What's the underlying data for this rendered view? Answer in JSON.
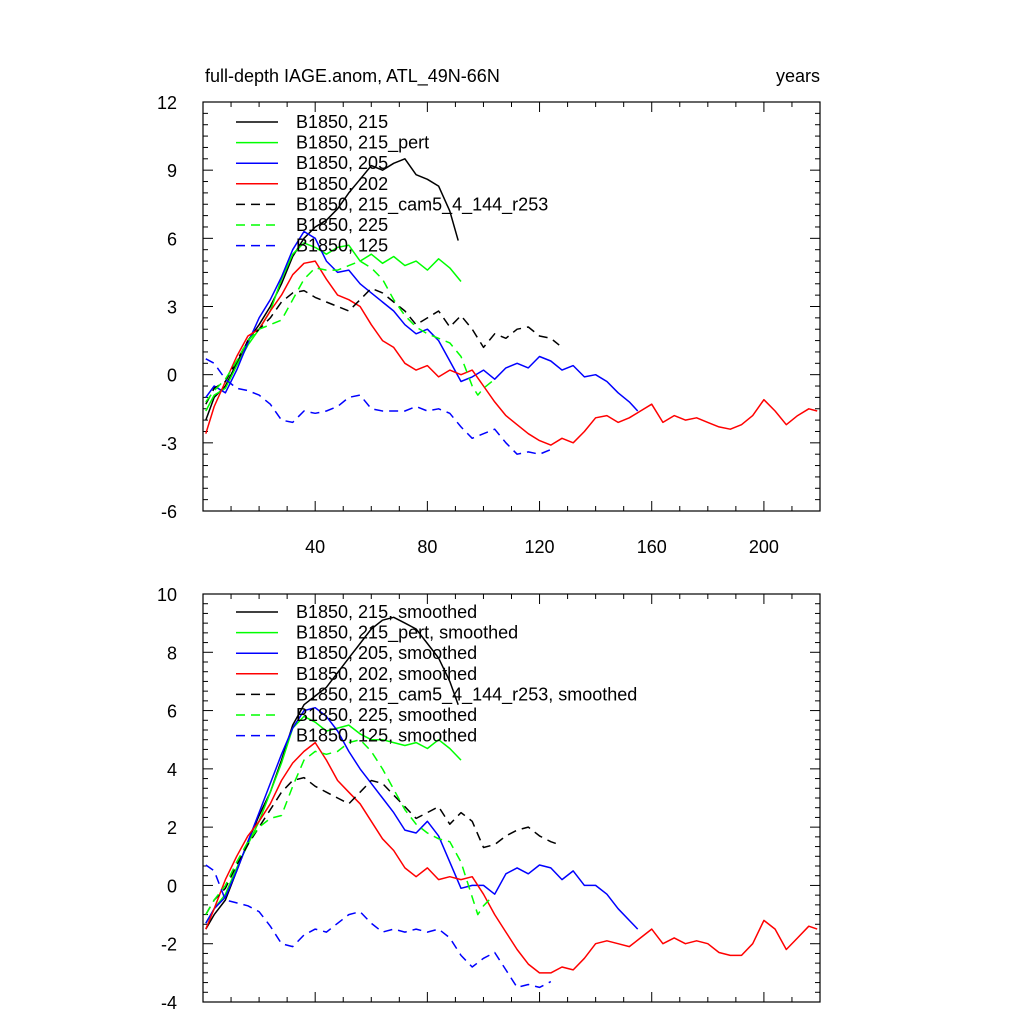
{
  "colors": {
    "black": "#000000",
    "green": "#00ff00",
    "blue": "#0000ff",
    "red": "#ff0000"
  },
  "chart_data": [
    {
      "type": "line",
      "title": "full-depth IAGE.anom, ATL_49N-66N",
      "units": "years",
      "xlim": [
        0,
        220
      ],
      "ylim": [
        -6,
        12
      ],
      "x_ticks": [
        "40",
        "80",
        "120",
        "160",
        "200"
      ],
      "y_ticks": [
        "-6",
        "-3",
        "0",
        "3",
        "6",
        "9",
        "12"
      ],
      "series": [
        {
          "name": "B1850, 215",
          "color": "#000000",
          "dash": false,
          "x": [
            1,
            4,
            8,
            12,
            16,
            20,
            24,
            28,
            32,
            36,
            40,
            44,
            48,
            52,
            56,
            60,
            64,
            68,
            72,
            76,
            80,
            84,
            88,
            91
          ],
          "y": [
            -2.0,
            -1.0,
            -0.5,
            0.5,
            1.5,
            2.2,
            3.0,
            4.0,
            5.2,
            6.0,
            6.5,
            6.8,
            7.3,
            8.0,
            8.6,
            9.2,
            9.0,
            9.3,
            9.5,
            8.8,
            8.6,
            8.3,
            7.2,
            5.9
          ]
        },
        {
          "name": "B1850, 215_pert",
          "color": "#00ff00",
          "dash": false,
          "x": [
            1,
            4,
            8,
            12,
            16,
            20,
            24,
            28,
            32,
            36,
            40,
            44,
            48,
            52,
            56,
            60,
            64,
            68,
            72,
            76,
            80,
            84,
            88,
            92
          ],
          "y": [
            -1.6,
            -0.9,
            -0.6,
            0.4,
            1.3,
            2.0,
            2.8,
            4.2,
            5.3,
            5.8,
            5.6,
            5.3,
            5.6,
            5.7,
            5.0,
            5.3,
            4.9,
            5.2,
            4.8,
            5.0,
            4.6,
            5.1,
            4.7,
            4.1
          ]
        },
        {
          "name": "B1850, 205",
          "color": "#0000ff",
          "dash": false,
          "x": [
            1,
            4,
            8,
            12,
            16,
            20,
            24,
            28,
            32,
            36,
            40,
            44,
            48,
            52,
            56,
            60,
            64,
            68,
            72,
            76,
            80,
            84,
            88,
            92,
            96,
            100,
            104,
            108,
            112,
            116,
            120,
            124,
            128,
            132,
            136,
            140,
            144,
            148,
            152,
            155
          ],
          "y": [
            -1.0,
            -0.5,
            -0.8,
            0.2,
            1.4,
            2.5,
            3.3,
            4.3,
            5.5,
            6.3,
            6.0,
            5.0,
            4.5,
            4.6,
            4.0,
            3.6,
            3.2,
            2.8,
            2.2,
            1.8,
            2.0,
            1.5,
            0.6,
            -0.3,
            -0.1,
            0.2,
            -0.2,
            0.3,
            0.5,
            0.3,
            0.8,
            0.6,
            0.2,
            0.4,
            -0.1,
            0.0,
            -0.3,
            -0.8,
            -1.2,
            -1.6
          ]
        },
        {
          "name": "B1850, 202",
          "color": "#ff0000",
          "dash": false,
          "x": [
            1,
            4,
            8,
            12,
            16,
            20,
            24,
            28,
            32,
            36,
            40,
            44,
            48,
            52,
            56,
            60,
            64,
            68,
            72,
            76,
            80,
            84,
            88,
            92,
            96,
            100,
            104,
            108,
            112,
            116,
            120,
            124,
            128,
            132,
            136,
            140,
            144,
            148,
            152,
            156,
            160,
            164,
            168,
            172,
            176,
            180,
            184,
            188,
            192,
            196,
            200,
            204,
            208,
            212,
            216,
            219
          ],
          "y": [
            -2.6,
            -1.4,
            -0.3,
            0.8,
            1.7,
            2.0,
            2.8,
            3.5,
            4.4,
            4.9,
            5.0,
            4.2,
            3.5,
            3.3,
            3.0,
            2.2,
            1.5,
            1.2,
            0.5,
            0.2,
            0.4,
            -0.1,
            0.2,
            0.0,
            0.2,
            -0.5,
            -1.2,
            -1.8,
            -2.2,
            -2.6,
            -2.9,
            -3.1,
            -2.8,
            -3.0,
            -2.5,
            -1.9,
            -1.8,
            -2.1,
            -1.9,
            -1.6,
            -1.3,
            -2.1,
            -1.8,
            -2.0,
            -1.9,
            -2.1,
            -2.3,
            -2.4,
            -2.2,
            -1.8,
            -1.1,
            -1.6,
            -2.2,
            -1.8,
            -1.5,
            -1.6
          ]
        },
        {
          "name": "B1850, 215_cam5_4_144_r253",
          "color": "#000000",
          "dash": true,
          "x": [
            1,
            4,
            8,
            12,
            16,
            20,
            24,
            28,
            32,
            36,
            40,
            44,
            48,
            52,
            56,
            60,
            64,
            68,
            72,
            76,
            80,
            84,
            88,
            92,
            96,
            100,
            104,
            108,
            112,
            116,
            120,
            124,
            127
          ],
          "y": [
            -1.3,
            -0.6,
            -0.3,
            0.6,
            1.5,
            2.0,
            2.5,
            3.2,
            3.6,
            3.7,
            3.4,
            3.2,
            3.0,
            2.8,
            3.3,
            3.8,
            3.6,
            3.2,
            2.8,
            2.2,
            2.5,
            2.8,
            2.1,
            2.6,
            2.0,
            1.2,
            1.8,
            1.6,
            2.0,
            2.1,
            1.7,
            1.6,
            1.3
          ]
        },
        {
          "name": "B1850, 225",
          "color": "#00ff00",
          "dash": true,
          "x": [
            1,
            4,
            8,
            12,
            16,
            20,
            24,
            28,
            32,
            36,
            40,
            44,
            48,
            52,
            56,
            60,
            64,
            68,
            72,
            76,
            80,
            84,
            88,
            92,
            96,
            98,
            100,
            103
          ],
          "y": [
            -1.2,
            -0.7,
            -0.2,
            0.6,
            1.5,
            2.0,
            2.2,
            2.4,
            3.3,
            4.2,
            4.7,
            4.6,
            4.6,
            4.8,
            5.0,
            4.7,
            4.2,
            3.3,
            2.6,
            2.1,
            1.8,
            1.6,
            1.4,
            0.8,
            -0.5,
            -0.9,
            -0.6,
            -0.3
          ]
        },
        {
          "name": "B1850, 125",
          "color": "#0000ff",
          "dash": true,
          "x": [
            1,
            4,
            8,
            12,
            16,
            20,
            24,
            28,
            32,
            36,
            40,
            44,
            48,
            52,
            56,
            60,
            64,
            68,
            72,
            76,
            80,
            84,
            88,
            92,
            96,
            100,
            104,
            108,
            112,
            116,
            120,
            124
          ],
          "y": [
            0.7,
            0.5,
            -0.2,
            -0.6,
            -0.7,
            -0.9,
            -1.3,
            -2.0,
            -2.1,
            -1.6,
            -1.7,
            -1.6,
            -1.4,
            -1.0,
            -0.9,
            -1.5,
            -1.6,
            -1.6,
            -1.6,
            -1.4,
            -1.6,
            -1.5,
            -1.7,
            -2.3,
            -2.8,
            -2.6,
            -2.4,
            -3.0,
            -3.5,
            -3.4,
            -3.5,
            -3.3
          ]
        }
      ]
    },
    {
      "type": "line",
      "xlim": [
        0,
        220
      ],
      "ylim": [
        -4,
        10
      ],
      "y_ticks": [
        "-4",
        "-2",
        "0",
        "2",
        "4",
        "6",
        "8",
        "10"
      ],
      "series": [
        {
          "name": "B1850, 215, smoothed",
          "color": "#000000",
          "dash": false,
          "x": [
            1,
            4,
            8,
            12,
            16,
            20,
            24,
            28,
            32,
            36,
            40,
            44,
            48,
            52,
            56,
            60,
            64,
            68,
            72,
            76,
            80,
            84,
            88,
            91
          ],
          "y": [
            -1.5,
            -1.0,
            -0.5,
            0.5,
            1.5,
            2.4,
            3.2,
            4.3,
            5.5,
            6.2,
            6.5,
            6.8,
            7.3,
            7.8,
            8.3,
            8.8,
            9.1,
            9.2,
            9.0,
            8.8,
            8.3,
            7.8,
            7.0,
            6.2
          ]
        },
        {
          "name": "B1850, 215_pert, smoothed",
          "color": "#00ff00",
          "dash": false,
          "x": [
            1,
            4,
            8,
            12,
            16,
            20,
            24,
            28,
            32,
            36,
            40,
            44,
            48,
            52,
            56,
            60,
            64,
            68,
            72,
            76,
            80,
            84,
            88,
            92
          ],
          "y": [
            -1.3,
            -0.8,
            -0.3,
            0.6,
            1.4,
            2.2,
            3.2,
            4.2,
            5.4,
            5.8,
            5.6,
            5.3,
            5.4,
            5.5,
            5.2,
            5.0,
            5.0,
            4.9,
            4.8,
            4.9,
            4.7,
            5.0,
            4.7,
            4.3
          ]
        },
        {
          "name": "B1850, 205, smoothed",
          "color": "#0000ff",
          "dash": false,
          "x": [
            1,
            4,
            8,
            12,
            16,
            20,
            24,
            28,
            32,
            36,
            40,
            44,
            48,
            52,
            56,
            60,
            64,
            68,
            72,
            76,
            80,
            84,
            88,
            92,
            96,
            100,
            104,
            108,
            112,
            116,
            120,
            124,
            128,
            132,
            136,
            140,
            144,
            148,
            152,
            155
          ],
          "y": [
            -1.3,
            -0.8,
            -0.4,
            0.5,
            1.5,
            2.5,
            3.5,
            4.5,
            5.4,
            6.0,
            6.1,
            5.8,
            5.3,
            4.6,
            4.0,
            3.5,
            3.0,
            2.5,
            1.9,
            1.8,
            2.2,
            1.7,
            0.8,
            -0.1,
            0.0,
            0.0,
            -0.3,
            0.4,
            0.6,
            0.4,
            0.7,
            0.6,
            0.2,
            0.5,
            0.0,
            0.0,
            -0.3,
            -0.8,
            -1.2,
            -1.5
          ]
        },
        {
          "name": "B1850, 202, smoothed",
          "color": "#ff0000",
          "dash": false,
          "x": [
            1,
            4,
            8,
            12,
            16,
            20,
            24,
            28,
            32,
            36,
            40,
            44,
            48,
            52,
            56,
            60,
            64,
            68,
            72,
            76,
            80,
            84,
            88,
            92,
            96,
            100,
            104,
            108,
            112,
            116,
            120,
            124,
            128,
            132,
            136,
            140,
            144,
            148,
            152,
            156,
            160,
            164,
            168,
            172,
            176,
            180,
            184,
            188,
            192,
            196,
            200,
            204,
            208,
            212,
            216,
            219
          ],
          "y": [
            -1.5,
            -0.8,
            0.2,
            1.0,
            1.7,
            2.2,
            2.8,
            3.6,
            4.2,
            4.6,
            4.9,
            4.3,
            3.6,
            3.2,
            2.8,
            2.2,
            1.6,
            1.2,
            0.6,
            0.3,
            0.6,
            0.2,
            0.3,
            0.2,
            0.3,
            -0.3,
            -1.0,
            -1.6,
            -2.2,
            -2.7,
            -3.0,
            -3.0,
            -2.8,
            -2.9,
            -2.5,
            -2.0,
            -1.9,
            -2.0,
            -2.1,
            -1.8,
            -1.5,
            -2.0,
            -1.8,
            -2.0,
            -1.9,
            -2.0,
            -2.3,
            -2.4,
            -2.4,
            -2.0,
            -1.2,
            -1.5,
            -2.2,
            -1.8,
            -1.4,
            -1.5
          ]
        },
        {
          "name": "B1850, 215_cam5_4_144_r253, smoothed",
          "color": "#000000",
          "dash": true,
          "x": [
            1,
            4,
            8,
            12,
            16,
            20,
            24,
            28,
            32,
            36,
            40,
            44,
            48,
            52,
            56,
            60,
            64,
            68,
            72,
            76,
            80,
            84,
            88,
            92,
            96,
            100,
            104,
            108,
            112,
            116,
            120,
            124,
            127
          ],
          "y": [
            -1.0,
            -0.5,
            -0.1,
            0.7,
            1.4,
            2.0,
            2.6,
            3.2,
            3.6,
            3.7,
            3.4,
            3.2,
            3.0,
            2.8,
            3.2,
            3.6,
            3.5,
            3.1,
            2.7,
            2.3,
            2.5,
            2.7,
            2.1,
            2.5,
            2.2,
            1.3,
            1.4,
            1.7,
            1.9,
            2.0,
            1.7,
            1.5,
            1.4
          ]
        },
        {
          "name": "B1850, 225, smoothed",
          "color": "#00ff00",
          "dash": true,
          "x": [
            1,
            4,
            8,
            12,
            16,
            20,
            24,
            28,
            32,
            36,
            40,
            44,
            48,
            52,
            56,
            60,
            64,
            68,
            72,
            76,
            80,
            84,
            88,
            92,
            96,
            98,
            100,
            103
          ],
          "y": [
            -1.0,
            -0.5,
            0.0,
            0.8,
            1.5,
            2.0,
            2.3,
            2.4,
            3.4,
            4.3,
            4.6,
            4.5,
            4.6,
            4.9,
            5.0,
            4.6,
            4.0,
            3.3,
            2.6,
            2.1,
            1.8,
            1.6,
            1.5,
            0.8,
            -0.4,
            -1.0,
            -0.7,
            -0.4
          ]
        },
        {
          "name": "B1850, 125, smoothed",
          "color": "#0000ff",
          "dash": true,
          "x": [
            1,
            4,
            8,
            12,
            16,
            20,
            24,
            28,
            32,
            36,
            40,
            44,
            48,
            52,
            56,
            60,
            64,
            68,
            72,
            76,
            80,
            84,
            88,
            92,
            96,
            100,
            104,
            108,
            112,
            116,
            120,
            124
          ],
          "y": [
            0.7,
            0.5,
            -0.5,
            -0.6,
            -0.7,
            -0.9,
            -1.4,
            -2.0,
            -2.1,
            -1.7,
            -1.5,
            -1.6,
            -1.3,
            -1.0,
            -0.9,
            -1.3,
            -1.6,
            -1.5,
            -1.6,
            -1.5,
            -1.6,
            -1.5,
            -1.8,
            -2.4,
            -2.8,
            -2.5,
            -2.3,
            -2.9,
            -3.5,
            -3.4,
            -3.5,
            -3.3
          ]
        }
      ]
    }
  ]
}
